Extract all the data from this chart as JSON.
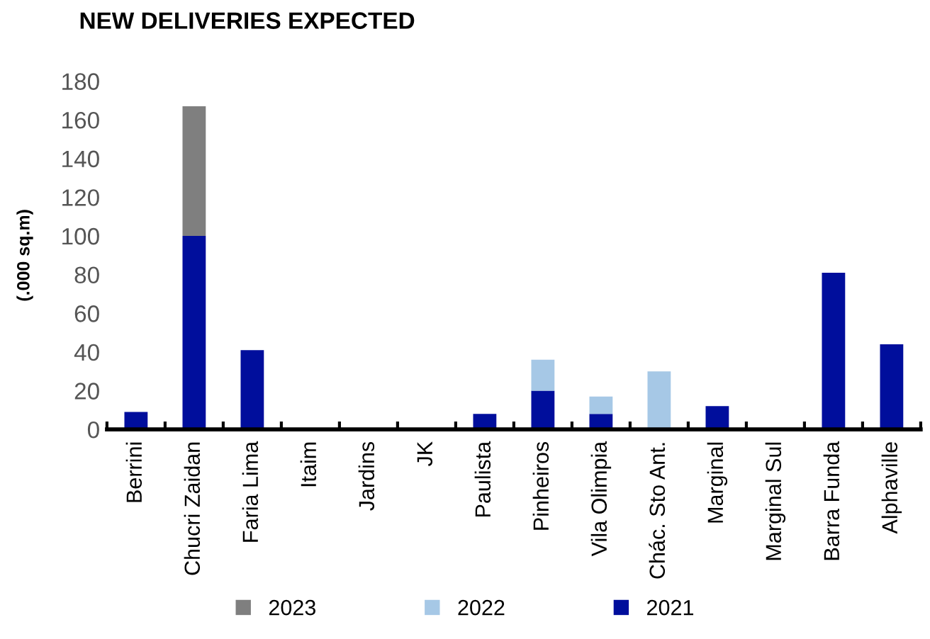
{
  "chart_data": {
    "type": "bar",
    "title": "NEW DELIVERIES EXPECTED",
    "ylabel": "(.000 sq.m)",
    "categories": [
      "Berrini",
      "Chucri Zaidan",
      "Faria Lima",
      "Itaim",
      "Jardins",
      "JK",
      "Paulista",
      "Pinheiros",
      "Vila Olimpia",
      "Chác. Sto Ant.",
      "Marginal",
      "Marginal Sul",
      "Barra Funda",
      "Alphaville"
    ],
    "series": [
      {
        "name": "2021",
        "color": "#000e9c",
        "values": [
          9,
          100,
          41,
          0,
          0,
          0,
          8,
          20,
          8,
          0,
          12,
          0,
          81,
          44
        ]
      },
      {
        "name": "2022",
        "color": "#a6c8e6",
        "values": [
          0,
          0,
          0,
          0,
          0,
          0,
          0,
          16,
          9,
          30,
          0,
          0,
          0,
          0
        ]
      },
      {
        "name": "2023",
        "color": "#7f7f7f",
        "values": [
          0,
          67,
          0,
          0,
          0,
          0,
          0,
          0,
          0,
          0,
          0,
          0,
          0,
          0
        ]
      }
    ],
    "stacked": true,
    "ylim": [
      0,
      180
    ],
    "yticks": [
      0,
      20,
      40,
      60,
      80,
      100,
      120,
      140,
      160,
      180
    ],
    "grid": false,
    "legend": "bottom"
  }
}
